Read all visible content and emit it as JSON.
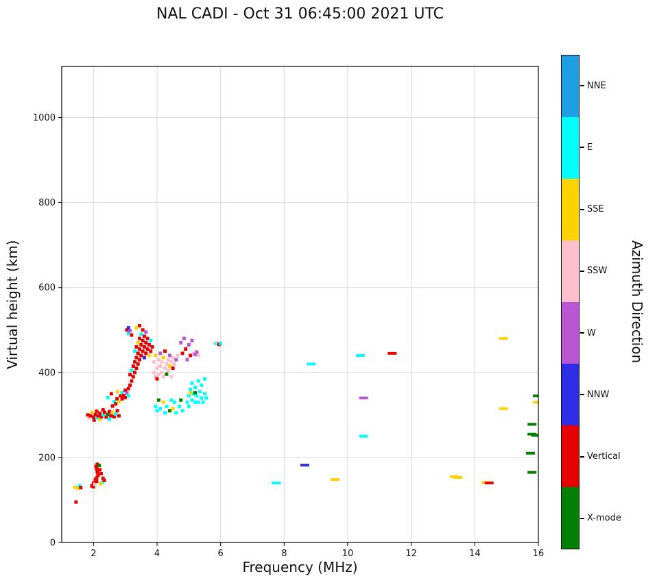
{
  "chart_data": {
    "type": "scatter",
    "title": "NAL CADI - Oct 31 06:45:00 2021 UTC",
    "xlabel": "Frequency (MHz)",
    "ylabel": "Virtual height (km)",
    "xlim": [
      1,
      16
    ],
    "ylim": [
      0,
      1120
    ],
    "xticks": [
      2,
      4,
      6,
      8,
      10,
      12,
      14,
      16
    ],
    "yticks": [
      0,
      200,
      400,
      600,
      800,
      1000
    ],
    "grid": true,
    "grid_color": "#d9d9d9",
    "colorbar": {
      "label": "Azimuth Direction",
      "position": "right",
      "categories": [
        {
          "name": "NNE",
          "color": "#1E9FE5"
        },
        {
          "name": "E",
          "color": "#00FFFF"
        },
        {
          "name": "SSE",
          "color": "#FFD300"
        },
        {
          "name": "SSW",
          "color": "#FFC0CB"
        },
        {
          "name": "W",
          "color": "#BA55D3"
        },
        {
          "name": "NNW",
          "color": "#2E2EE6"
        },
        {
          "name": "Vertical",
          "color": "#E60000"
        },
        {
          "name": "X-mode",
          "color": "#008000"
        }
      ]
    },
    "points": {
      "squares": [
        [
          1.45,
          95,
          6
        ],
        [
          1.42,
          130,
          2
        ],
        [
          1.5,
          128,
          2
        ],
        [
          1.56,
          133,
          1
        ],
        [
          1.6,
          129,
          6
        ],
        [
          1.95,
          133,
          6
        ],
        [
          2.0,
          131,
          6
        ],
        [
          2.0,
          140,
          6
        ],
        [
          2.04,
          137,
          3
        ],
        [
          2.06,
          148,
          6
        ],
        [
          2.1,
          144,
          6
        ],
        [
          2.1,
          152,
          6
        ],
        [
          2.14,
          158,
          6
        ],
        [
          2.12,
          166,
          6
        ],
        [
          2.1,
          173,
          6
        ],
        [
          2.08,
          179,
          6
        ],
        [
          2.12,
          184,
          6
        ],
        [
          2.18,
          181,
          7
        ],
        [
          2.2,
          171,
          6
        ],
        [
          2.24,
          162,
          6
        ],
        [
          2.3,
          151,
          6
        ],
        [
          2.28,
          142,
          1
        ],
        [
          2.22,
          138,
          2
        ],
        [
          2.34,
          146,
          6
        ],
        [
          1.82,
          300,
          6
        ],
        [
          1.86,
          293,
          3
        ],
        [
          1.9,
          298,
          6
        ],
        [
          1.95,
          306,
          2
        ],
        [
          2.0,
          295,
          6
        ],
        [
          2.02,
          288,
          6
        ],
        [
          2.06,
          301,
          6
        ],
        [
          2.1,
          293,
          1
        ],
        [
          2.1,
          309,
          6
        ],
        [
          2.15,
          298,
          6
        ],
        [
          2.2,
          304,
          6
        ],
        [
          2.2,
          290,
          2
        ],
        [
          2.25,
          296,
          6
        ],
        [
          2.3,
          301,
          1
        ],
        [
          2.3,
          312,
          6
        ],
        [
          2.35,
          306,
          6
        ],
        [
          2.4,
          295,
          6
        ],
        [
          2.45,
          301,
          7
        ],
        [
          2.5,
          308,
          6
        ],
        [
          2.5,
          290,
          1
        ],
        [
          2.55,
          298,
          6
        ],
        [
          2.6,
          306,
          2
        ],
        [
          2.65,
          296,
          6
        ],
        [
          2.7,
          302,
          1
        ],
        [
          2.75,
          310,
          6
        ],
        [
          2.8,
          298,
          6
        ],
        [
          2.45,
          341,
          1
        ],
        [
          2.56,
          350,
          6
        ],
        [
          2.6,
          321,
          6
        ],
        [
          2.65,
          331,
          1
        ],
        [
          2.7,
          326,
          6
        ],
        [
          2.74,
          338,
          6
        ],
        [
          2.76,
          355,
          2
        ],
        [
          2.8,
          331,
          2
        ],
        [
          2.85,
          345,
          6
        ],
        [
          2.9,
          338,
          6
        ],
        [
          2.9,
          352,
          1
        ],
        [
          2.95,
          346,
          6
        ],
        [
          3.0,
          358,
          6
        ],
        [
          3.0,
          341,
          6
        ],
        [
          3.05,
          352,
          4
        ],
        [
          3.1,
          362,
          6
        ],
        [
          3.1,
          345,
          1
        ],
        [
          3.15,
          370,
          6
        ],
        [
          3.15,
          395,
          6
        ],
        [
          3.2,
          380,
          6
        ],
        [
          3.2,
          405,
          1
        ],
        [
          3.25,
          390,
          6
        ],
        [
          3.25,
          415,
          6
        ],
        [
          3.3,
          400,
          6
        ],
        [
          3.3,
          425,
          6
        ],
        [
          3.3,
          450,
          1
        ],
        [
          3.35,
          410,
          6
        ],
        [
          3.35,
          435,
          6
        ],
        [
          3.35,
          460,
          6
        ],
        [
          3.4,
          420,
          6
        ],
        [
          3.4,
          445,
          6
        ],
        [
          3.4,
          470,
          2
        ],
        [
          3.45,
          430,
          6
        ],
        [
          3.45,
          455,
          6
        ],
        [
          3.45,
          480,
          6
        ],
        [
          3.5,
          440,
          6
        ],
        [
          3.5,
          465,
          6
        ],
        [
          3.5,
          490,
          1
        ],
        [
          3.55,
          450,
          6
        ],
        [
          3.55,
          475,
          6
        ],
        [
          3.55,
          500,
          6
        ],
        [
          3.6,
          460,
          6
        ],
        [
          3.6,
          485,
          6
        ],
        [
          3.6,
          435,
          5
        ],
        [
          3.65,
          470,
          6
        ],
        [
          3.65,
          445,
          6
        ],
        [
          3.65,
          495,
          4
        ],
        [
          3.7,
          455,
          6
        ],
        [
          3.7,
          480,
          6
        ],
        [
          3.75,
          465,
          6
        ],
        [
          3.75,
          440,
          2
        ],
        [
          3.8,
          450,
          6
        ],
        [
          3.8,
          475,
          1
        ],
        [
          3.85,
          460,
          6
        ],
        [
          3.05,
          500,
          6
        ],
        [
          3.1,
          492,
          1
        ],
        [
          3.15,
          498,
          4
        ],
        [
          3.2,
          488,
          6
        ],
        [
          3.1,
          505,
          5
        ],
        [
          3.45,
          510,
          6
        ],
        [
          3.35,
          505,
          2
        ],
        [
          3.9,
          400,
          3
        ],
        [
          3.9,
          425,
          3
        ],
        [
          3.95,
          390,
          3
        ],
        [
          3.95,
          440,
          2
        ],
        [
          4.0,
          410,
          3
        ],
        [
          4.0,
          385,
          6
        ],
        [
          4.05,
          430,
          3
        ],
        [
          4.05,
          395,
          3
        ],
        [
          4.1,
          415,
          3
        ],
        [
          4.1,
          445,
          4
        ],
        [
          4.15,
          400,
          3
        ],
        [
          4.15,
          425,
          3
        ],
        [
          4.2,
          435,
          2
        ],
        [
          4.2,
          390,
          3
        ],
        [
          4.25,
          410,
          3
        ],
        [
          4.25,
          450,
          6
        ],
        [
          4.3,
          420,
          3
        ],
        [
          4.3,
          396,
          7
        ],
        [
          4.35,
          430,
          3
        ],
        [
          4.35,
          405,
          3
        ],
        [
          4.4,
          440,
          4
        ],
        [
          4.4,
          415,
          2
        ],
        [
          4.45,
          425,
          3
        ],
        [
          4.45,
          390,
          3
        ],
        [
          4.5,
          435,
          3
        ],
        [
          4.5,
          410,
          6
        ],
        [
          4.55,
          420,
          3
        ],
        [
          4.6,
          430,
          4
        ],
        [
          4.65,
          440,
          3
        ],
        [
          3.95,
          320,
          1
        ],
        [
          4.0,
          310,
          1
        ],
        [
          4.05,
          335,
          7
        ],
        [
          4.1,
          315,
          1
        ],
        [
          4.2,
          330,
          2
        ],
        [
          4.25,
          305,
          1
        ],
        [
          4.3,
          320,
          1
        ],
        [
          4.4,
          310,
          7
        ],
        [
          4.45,
          335,
          1
        ],
        [
          4.5,
          315,
          2
        ],
        [
          4.55,
          330,
          1
        ],
        [
          4.6,
          305,
          1
        ],
        [
          4.7,
          320,
          1
        ],
        [
          4.75,
          335,
          7
        ],
        [
          4.8,
          310,
          1
        ],
        [
          4.75,
          470,
          4
        ],
        [
          4.8,
          445,
          6
        ],
        [
          4.85,
          480,
          4
        ],
        [
          4.9,
          455,
          6
        ],
        [
          4.95,
          430,
          4
        ],
        [
          5.0,
          465,
          4
        ],
        [
          5.05,
          440,
          6
        ],
        [
          5.1,
          475,
          4
        ],
        [
          5.15,
          445,
          3
        ],
        [
          5.2,
          442,
          4
        ],
        [
          5.25,
          448,
          4
        ],
        [
          5.3,
          440,
          3
        ],
        [
          4.95,
          330,
          1
        ],
        [
          5.0,
          345,
          1
        ],
        [
          5.0,
          320,
          1
        ],
        [
          5.05,
          360,
          1
        ],
        [
          5.05,
          352,
          2
        ],
        [
          5.1,
          335,
          1
        ],
        [
          5.1,
          375,
          1
        ],
        [
          5.15,
          350,
          1
        ],
        [
          5.2,
          330,
          1
        ],
        [
          5.2,
          352,
          7
        ],
        [
          5.2,
          365,
          1
        ],
        [
          5.25,
          345,
          1
        ],
        [
          5.3,
          380,
          1
        ],
        [
          5.3,
          330,
          1
        ],
        [
          5.35,
          355,
          1
        ],
        [
          5.4,
          340,
          1
        ],
        [
          5.4,
          370,
          1
        ],
        [
          5.45,
          330,
          1
        ],
        [
          5.5,
          350,
          1
        ],
        [
          5.5,
          385,
          1
        ],
        [
          5.55,
          340,
          1
        ],
        [
          5.85,
          468,
          1
        ],
        [
          5.9,
          470,
          3
        ],
        [
          5.95,
          466,
          6
        ],
        [
          6.0,
          468,
          1
        ]
      ],
      "dashes": [
        [
          7.75,
          140,
          1
        ],
        [
          8.65,
          182,
          5
        ],
        [
          8.85,
          420,
          1
        ],
        [
          9.6,
          148,
          2
        ],
        [
          10.4,
          440,
          1
        ],
        [
          10.5,
          340,
          4
        ],
        [
          10.5,
          250,
          1
        ],
        [
          11.4,
          445,
          6
        ],
        [
          13.35,
          155,
          2
        ],
        [
          13.47,
          153,
          2
        ],
        [
          14.35,
          141,
          2
        ],
        [
          14.45,
          140,
          6
        ],
        [
          14.9,
          480,
          2
        ],
        [
          14.9,
          315,
          2
        ],
        [
          15.8,
          278,
          7
        ],
        [
          15.8,
          255,
          7
        ],
        [
          15.92,
          252,
          7
        ],
        [
          15.75,
          210,
          7
        ],
        [
          15.8,
          165,
          7
        ],
        [
          15.97,
          345,
          7
        ],
        [
          15.97,
          330,
          2
        ]
      ]
    }
  }
}
